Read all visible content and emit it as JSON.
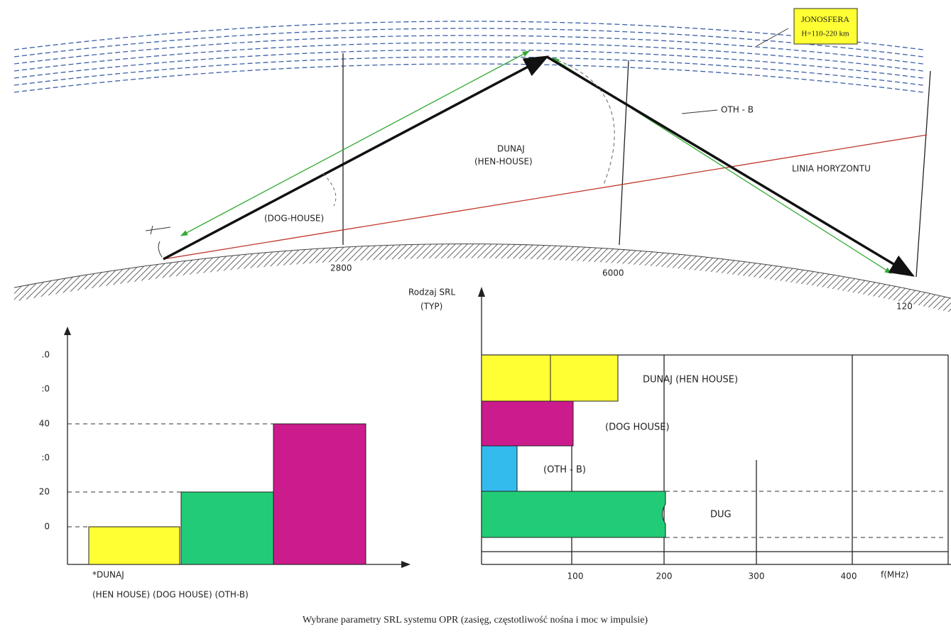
{
  "ionosphere": {
    "title": "JONOSFERA",
    "height": "H=110-220 km"
  },
  "diagram": {
    "oth_b": "OTH - B",
    "dunaj": "DUNAJ",
    "hen_house": "(HEN-HOUSE)",
    "horizon": "LINIA HORYZONTU",
    "dog_house": "(DOG-HOUSE)",
    "distances": [
      "2800",
      "6000",
      "120"
    ]
  },
  "left_panel": {
    "y_labels": [
      ".0",
      ":0",
      "40",
      ":0",
      "20",
      "0"
    ],
    "label_line1": "*DUNAJ",
    "label_line2": "(HEN HOUSE) (DOG HOUSE) (OTH-B)"
  },
  "right_panel": {
    "y_title": "Rodzaj SRL",
    "y_subtitle": "(TYP)",
    "bar_labels": [
      "DUNAJ (HEN HOUSE)",
      "(DOG HOUSE)",
      "(OTH - B)",
      "DUG"
    ],
    "x_labels": [
      "100",
      "200",
      "300",
      "400"
    ],
    "x_unit": "f(MHz)"
  },
  "caption": "Wybrane parametry SRL systemu OPR (zasięg, częstotliwość nośna i moc w impulsie)"
}
